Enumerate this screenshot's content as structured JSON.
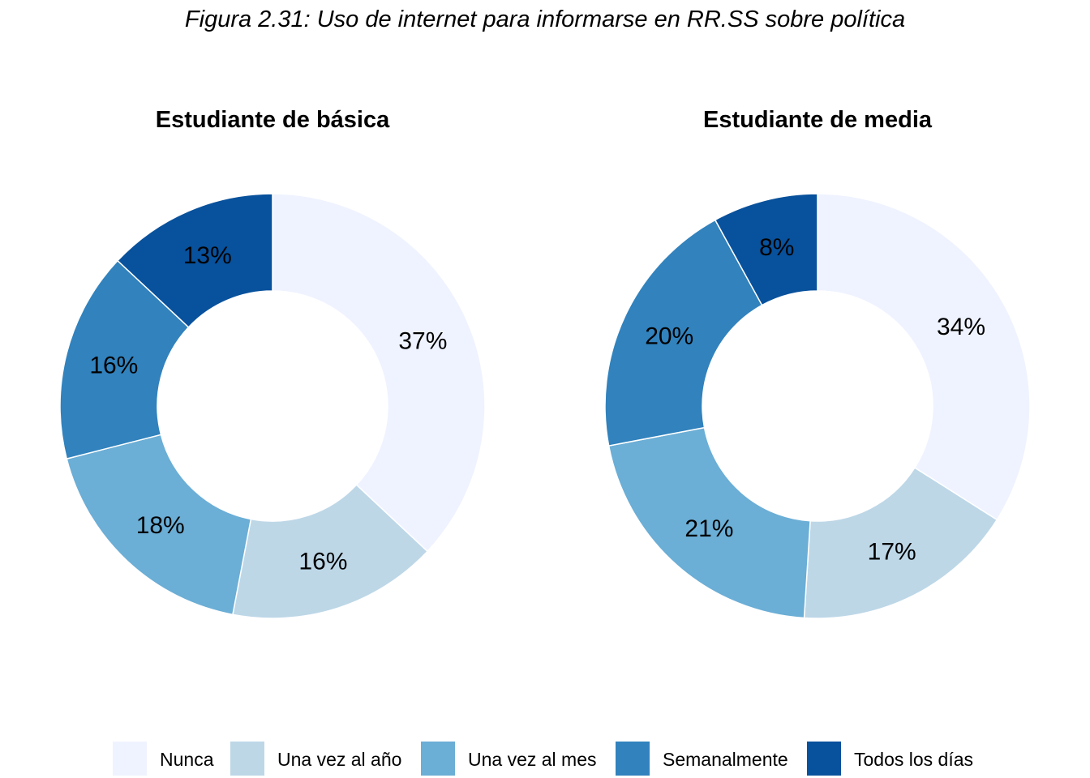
{
  "figure_title": "Figura 2.31: Uso de internet para informarse en RR.SS sobre política",
  "colors": {
    "Nunca": "#eff3ff",
    "Una vez al año": "#bdd7e7",
    "Una vez al mes": "#6baed6",
    "Semanalmente": "#3182bd",
    "Todos los días": "#08519c"
  },
  "legend": {
    "position": "bottom",
    "items": [
      "Nunca",
      "Una vez al año",
      "Una vez al mes",
      "Semanalmente",
      "Todos los días"
    ]
  },
  "chart_data": [
    {
      "type": "pie",
      "title": "Estudiante de básica",
      "categories": [
        "Nunca",
        "Una vez al año",
        "Una vez al mes",
        "Semanalmente",
        "Todos los días"
      ],
      "values": [
        37,
        16,
        18,
        16,
        13
      ],
      "labels": [
        "37%",
        "16%",
        "18%",
        "16%",
        "13%"
      ]
    },
    {
      "type": "pie",
      "title": "Estudiante de media",
      "categories": [
        "Nunca",
        "Una vez al año",
        "Una vez al mes",
        "Semanalmente",
        "Todos los días"
      ],
      "values": [
        34,
        17,
        21,
        20,
        8
      ],
      "labels": [
        "34%",
        "17%",
        "21%",
        "20%",
        "8%"
      ]
    }
  ]
}
